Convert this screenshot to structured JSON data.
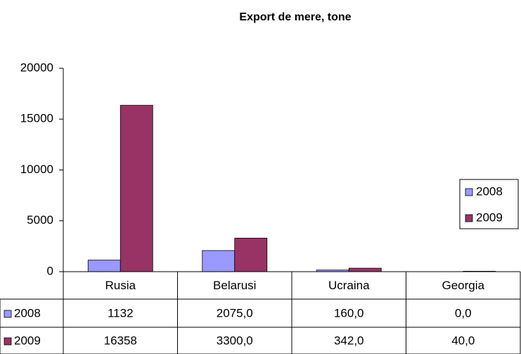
{
  "chart_data": {
    "type": "bar",
    "title": "Export de mere, tone",
    "categories": [
      "Rusia",
      "Belarusi",
      "Ucraina",
      "Georgia"
    ],
    "series": [
      {
        "name": "2008",
        "color": "#9999ff",
        "values": [
          1132,
          2075.0,
          160.0,
          0.0
        ],
        "value_labels": [
          "1132",
          "2075,0",
          "160,0",
          "0,0"
        ]
      },
      {
        "name": "2009",
        "color": "#993366",
        "values": [
          16358,
          3300.0,
          342.0,
          40.0
        ],
        "value_labels": [
          "16358",
          "3300,0",
          "342,0",
          "40,0"
        ]
      }
    ],
    "ylim": [
      0,
      20000
    ],
    "yticks": [
      0,
      5000,
      10000,
      15000,
      20000
    ],
    "grid": false,
    "legend": "right",
    "data_table": true
  }
}
